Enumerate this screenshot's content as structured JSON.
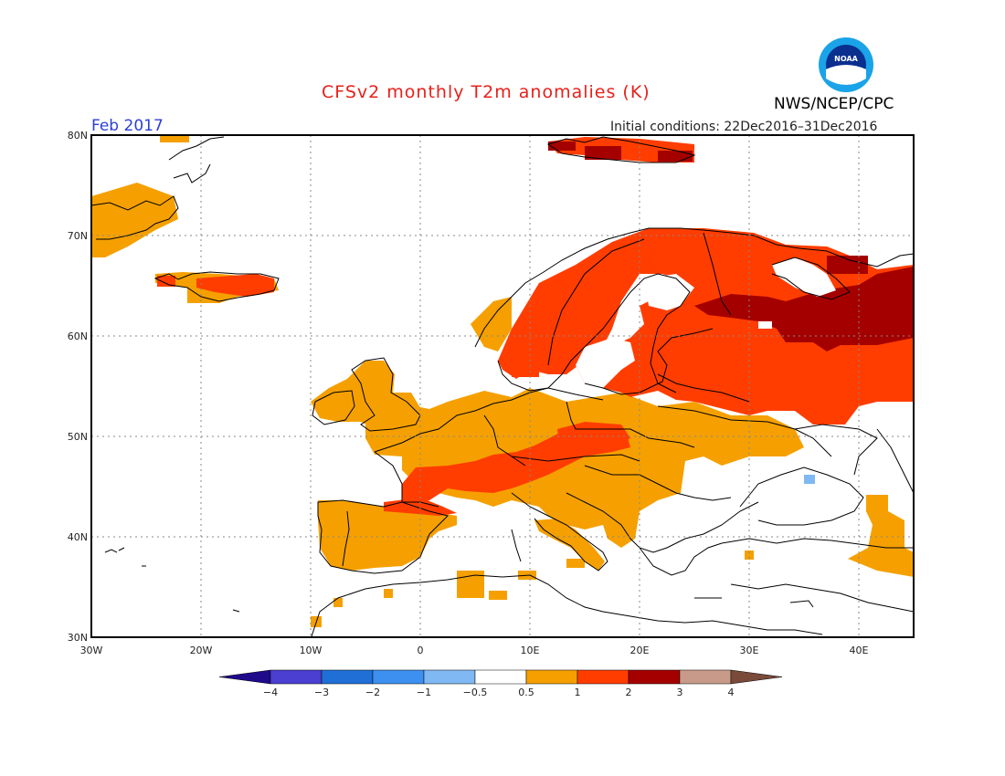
{
  "header": {
    "title": "CFSv2 monthly T2m anomalies (K)",
    "period": "Feb 2017",
    "initial_conditions": "Initial conditions: 22Dec2016–31Dec2016",
    "agency": "NWS/NCEP/CPC",
    "logo_text": "NOAA"
  },
  "map": {
    "lon_range": [
      -30,
      45
    ],
    "lat_range": [
      30,
      80
    ],
    "lat_labels": [
      "30N",
      "40N",
      "50N",
      "60N",
      "70N",
      "80N"
    ],
    "lon_labels": [
      "30W",
      "20W",
      "10W",
      "0",
      "10E",
      "20E",
      "30E",
      "40E"
    ],
    "grid": true
  },
  "colorbar": {
    "boundaries": [
      "-4",
      "-3",
      "-2",
      "-1",
      "-0.5",
      "0.5",
      "1",
      "2",
      "3",
      "4"
    ],
    "colors": [
      "#1f0a8c",
      "#4a3fd0",
      "#1f6fd6",
      "#3d8ff0",
      "#7fb8f2",
      "#ffffff",
      "#f5a000",
      "#ff3d00",
      "#a50000",
      "#c89a8a",
      "#7a4a3a"
    ]
  },
  "anomaly_colors": {
    "pos_0_5_1": "#f5a000",
    "pos_1_2": "#ff3d00",
    "pos_2_3": "#a50000",
    "neg_0_5_1": "#7fb8f2"
  }
}
